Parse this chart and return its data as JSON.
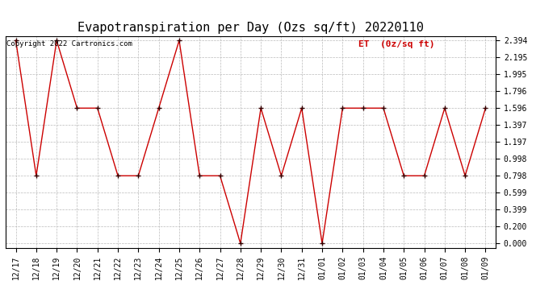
{
  "title": "Evapotranspiration per Day (Ozs sq/ft) 20220110",
  "copyright_text": "Copyright 2022 Cartronics.com",
  "legend_label": "ET  (0z/sq ft)",
  "x_labels": [
    "12/17",
    "12/18",
    "12/19",
    "12/20",
    "12/21",
    "12/22",
    "12/23",
    "12/24",
    "12/25",
    "12/26",
    "12/27",
    "12/28",
    "12/29",
    "12/30",
    "12/31",
    "01/01",
    "01/02",
    "01/03",
    "01/04",
    "01/05",
    "01/06",
    "01/07",
    "01/08",
    "01/09"
  ],
  "y_values": [
    2.394,
    0.798,
    2.394,
    1.596,
    1.596,
    0.798,
    0.798,
    1.596,
    2.394,
    0.798,
    0.798,
    0.0,
    1.596,
    0.798,
    1.596,
    0.0,
    1.596,
    1.596,
    1.596,
    0.798,
    0.798,
    1.596,
    0.798,
    1.596
  ],
  "y_ticks": [
    0.0,
    0.2,
    0.399,
    0.599,
    0.798,
    0.998,
    1.197,
    1.397,
    1.596,
    1.796,
    1.995,
    2.195,
    2.394
  ],
  "ylim": [
    0.0,
    2.394
  ],
  "line_color": "#cc0000",
  "marker_color": "#330000",
  "grid_color": "#bbbbbb",
  "bg_color": "#ffffff",
  "title_fontsize": 11,
  "tick_fontsize": 7,
  "copyright_fontsize": 6.5,
  "legend_fontsize": 8,
  "legend_color": "#cc0000"
}
